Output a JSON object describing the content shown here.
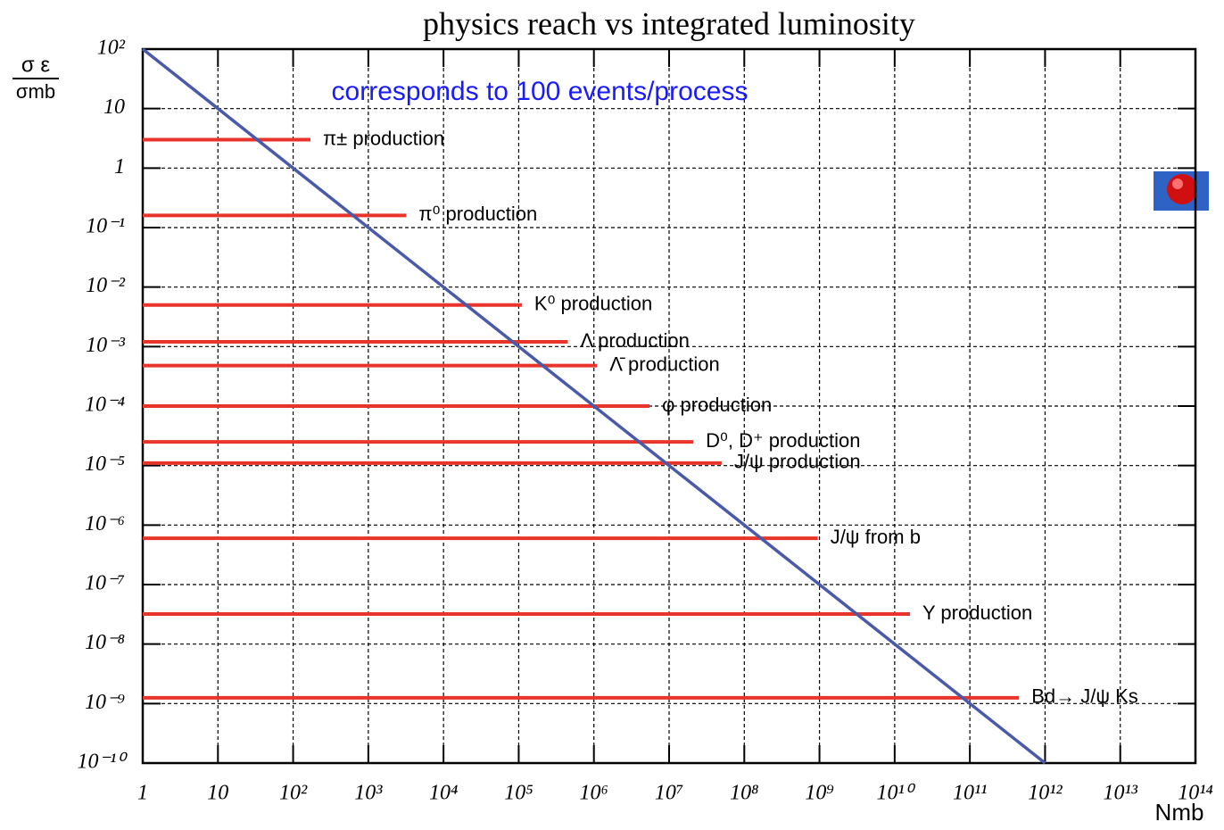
{
  "chart_data": {
    "type": "reach",
    "title": "physics reach vs integrated luminosity",
    "ylabel_numerator": "σ ε",
    "ylabel_denominator": "σmb",
    "xlabel": "Nmb",
    "annotation": "corresponds to 100 events/process",
    "annotation_color": "#1a1aff",
    "log_x": true,
    "log_y": true,
    "grid": true,
    "xlim": [
      1,
      100000000000000.0
    ],
    "ylim": [
      1e-10,
      100
    ],
    "xticks": [
      1,
      10,
      {
        "value": 100,
        "label": "10²"
      },
      {
        "value": 1000,
        "label": "10³"
      },
      {
        "value": 10000,
        "label": "10⁴"
      },
      {
        "value": 100000,
        "label": "10⁵"
      },
      {
        "value": 1000000,
        "label": "10⁶"
      },
      {
        "value": 10000000,
        "label": "10⁷"
      },
      {
        "value": 100000000,
        "label": "10⁸"
      },
      {
        "value": 1000000000,
        "label": "10⁹"
      },
      {
        "value": 10000000000,
        "label": "10¹⁰"
      },
      {
        "value": 100000000000,
        "label": "10¹¹"
      },
      {
        "value": 1000000000000,
        "label": "10¹²"
      },
      {
        "value": 10000000000000,
        "label": "10¹³"
      },
      {
        "value": 100000000000000,
        "label": "10¹⁴"
      }
    ],
    "yticks": [
      {
        "value": 1e-10,
        "label": "10⁻¹⁰"
      },
      {
        "value": 1e-09,
        "label": "10⁻⁹"
      },
      {
        "value": 1e-08,
        "label": "10⁻⁸"
      },
      {
        "value": 1e-07,
        "label": "10⁻⁷"
      },
      {
        "value": 1e-06,
        "label": "10⁻⁶"
      },
      {
        "value": 1e-05,
        "label": "10⁻⁵"
      },
      {
        "value": 0.0001,
        "label": "10⁻⁴"
      },
      {
        "value": 0.001,
        "label": "10⁻³"
      },
      {
        "value": 0.01,
        "label": "10⁻²"
      },
      {
        "value": 0.1,
        "label": "10⁻¹"
      },
      1,
      10,
      {
        "value": 100,
        "label": "10²"
      }
    ],
    "reach_line": {
      "color": "#4a5aa8",
      "x": [
        1,
        1000000000000
      ],
      "y": [
        100,
        1e-10
      ]
    },
    "process_color": "#e8342a",
    "processes": [
      {
        "label": "π± production",
        "sigma": 3,
        "n_max": 170
      },
      {
        "label": "π⁰ production",
        "sigma": 0.16,
        "n_max": 3200
      },
      {
        "label": "K⁰ production",
        "sigma": 0.005,
        "n_max": 110000
      },
      {
        "label": "Λ production",
        "sigma": 0.0012,
        "n_max": 450000
      },
      {
        "label": "Λ̄ production",
        "sigma": 0.00048,
        "n_max": 1100000
      },
      {
        "label": "φ production",
        "sigma": 0.0001,
        "n_max": 5500000
      },
      {
        "label": "D⁰, D⁺ production",
        "sigma": 2.5e-05,
        "n_max": 21000000
      },
      {
        "label": "J/ψ production",
        "sigma": 1.1e-05,
        "n_max": 50000000
      },
      {
        "label": "J/ψ from b",
        "sigma": 6e-07,
        "n_max": 950000000
      },
      {
        "label": "Υ production",
        "sigma": 3.2e-08,
        "n_max": 16000000000
      },
      {
        "label": "Bd→ J/ψ Ks",
        "sigma": 1.25e-09,
        "n_max": 450000000000
      }
    ]
  }
}
